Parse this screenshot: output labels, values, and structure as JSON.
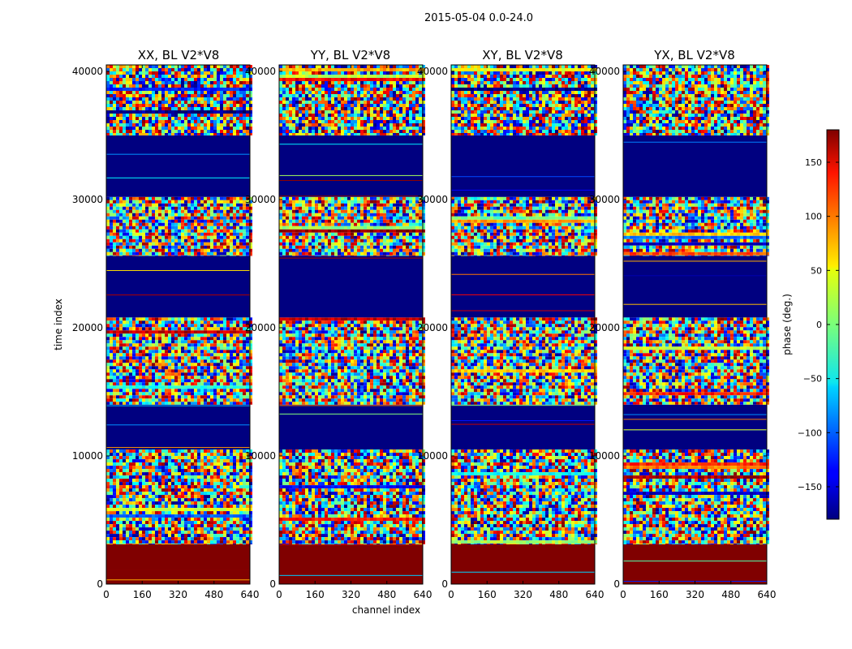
{
  "chart_data": {
    "type": "heatmap",
    "suptitle": "2015-05-04 0.0-24.0",
    "xlabel": "channel index",
    "ylabel": "time index",
    "xlim": [
      0,
      640
    ],
    "ylim": [
      0,
      40500
    ],
    "xticks": [
      0,
      160,
      320,
      480,
      640
    ],
    "yticks": [
      0,
      10000,
      20000,
      30000,
      40000
    ],
    "panels": [
      {
        "title": "XX, BL V2*V8",
        "name": "xx"
      },
      {
        "title": "YY, BL V2*V8",
        "name": "yy"
      },
      {
        "title": "XY, BL V2*V8",
        "name": "xy"
      },
      {
        "title": "YX, BL V2*V8",
        "name": "yx"
      }
    ],
    "colorbar": {
      "label": "phase (deg.)",
      "range": [
        -180,
        180
      ],
      "ticks": [
        -150,
        -100,
        -50,
        0,
        50,
        100,
        150
      ],
      "tick_labels": [
        "−150",
        "−100",
        "−50",
        "0",
        "50",
        "100",
        "150"
      ],
      "colormap": "jet"
    },
    "time_bands": [
      {
        "from": 0,
        "to": 3100,
        "kind": "solid",
        "phase": 180
      },
      {
        "from": 3100,
        "to": 10500,
        "kind": "noise"
      },
      {
        "from": 10500,
        "to": 14000,
        "kind": "solid",
        "phase": -180
      },
      {
        "from": 14000,
        "to": 20800,
        "kind": "noise"
      },
      {
        "from": 20800,
        "to": 25600,
        "kind": "solid",
        "phase": -180
      },
      {
        "from": 25600,
        "to": 30200,
        "kind": "noise"
      },
      {
        "from": 30200,
        "to": 35000,
        "kind": "solid",
        "phase": -180
      },
      {
        "from": 35000,
        "to": 40500,
        "kind": "noise"
      }
    ]
  },
  "colors": {
    "background": "#ffffff",
    "axis": "#000000"
  }
}
